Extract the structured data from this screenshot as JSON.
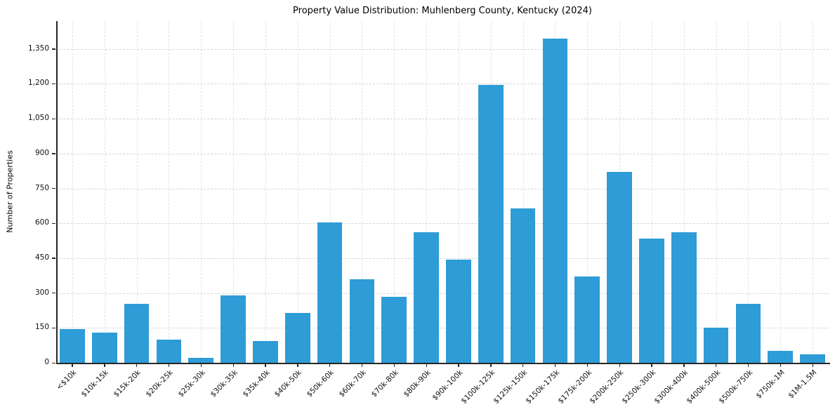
{
  "chart_data": {
    "type": "bar",
    "title": "Property Value Distribution: Muhlenberg County, Kentucky (2024)",
    "xlabel": "",
    "ylabel": "Number of Properties",
    "categories": [
      "<$10k",
      "$10k-15k",
      "$15k-20k",
      "$20k-25k",
      "$25k-30k",
      "$30k-35k",
      "$35k-40k",
      "$40k-50k",
      "$50k-60k",
      "$60k-70k",
      "$70k-80k",
      "$80k-90k",
      "$90k-100k",
      "$100k-125k",
      "$125k-150k",
      "$150k-175k",
      "$175k-200k",
      "$200k-250k",
      "$250k-300k",
      "$300k-400k",
      "$400k-500k",
      "$500k-750k",
      "$750k-1M",
      "$1M-1.5M"
    ],
    "values": [
      145,
      130,
      255,
      100,
      20,
      290,
      95,
      215,
      605,
      360,
      285,
      560,
      445,
      1195,
      665,
      1395,
      370,
      820,
      535,
      560,
      150,
      255,
      50,
      35
    ],
    "yticks": [
      0,
      150,
      300,
      450,
      600,
      750,
      900,
      1050,
      1200,
      1350
    ],
    "ylim": [
      0,
      1470
    ],
    "grid": "dashed-both",
    "legend": "none",
    "bar_color": "#2e9cd6"
  }
}
